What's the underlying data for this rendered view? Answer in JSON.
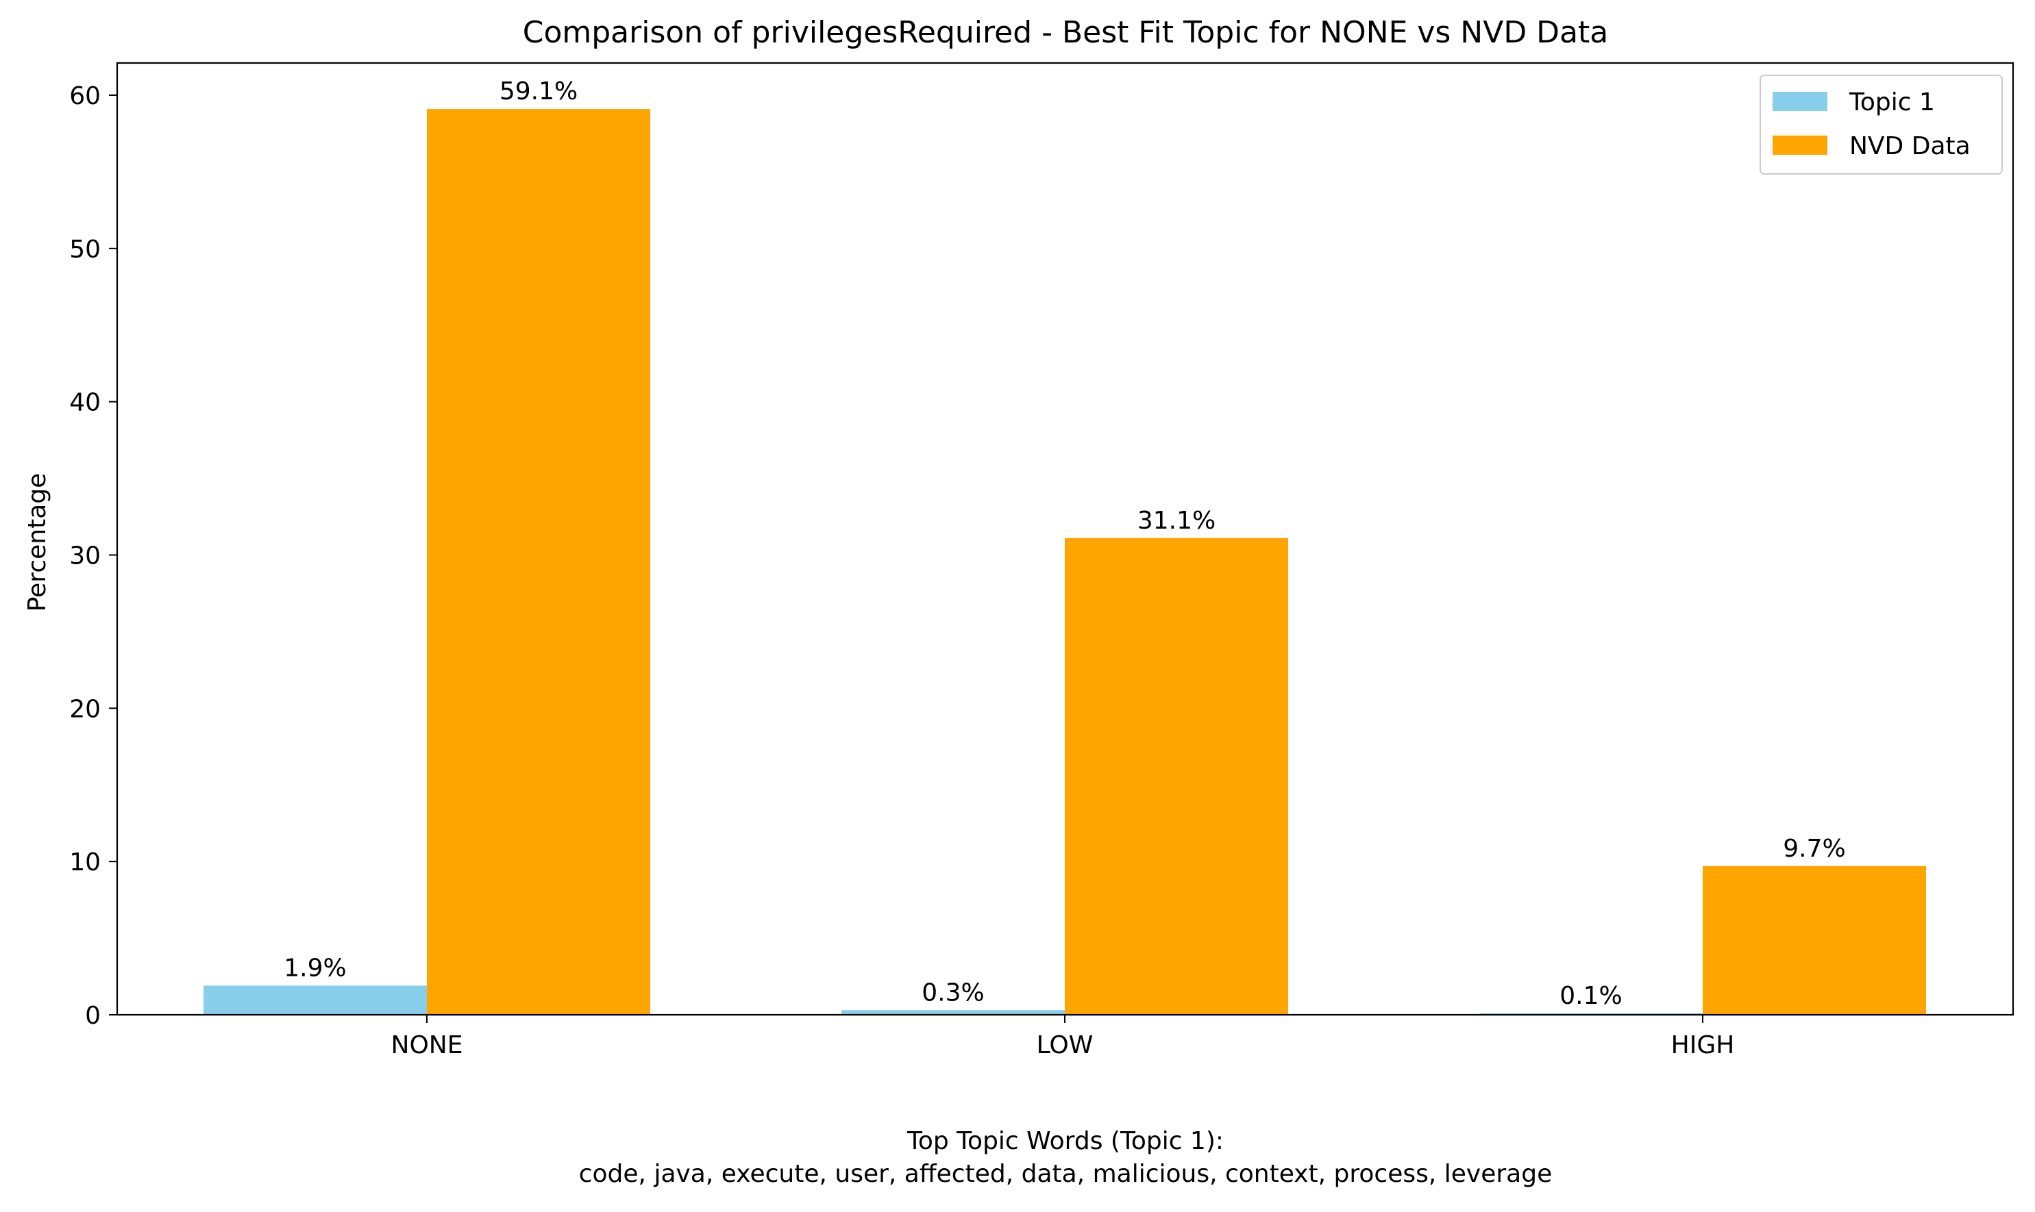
{
  "chart_data": {
    "type": "bar",
    "title": "Comparison of privilegesRequired - Best Fit Topic for NONE vs NVD Data",
    "xlabel_lines": [
      "Top Topic Words (Topic 1):",
      "code,  java,  execute,  user,  affected,  data,  malicious,  context,  process,  leverage"
    ],
    "ylabel": "Percentage",
    "categories": [
      "NONE",
      "LOW",
      "HIGH"
    ],
    "ylim": [
      0,
      62.1
    ],
    "yticks": [
      0,
      10,
      20,
      30,
      40,
      50,
      60
    ],
    "grid": false,
    "legend_position": "top-right",
    "series": [
      {
        "name": "Topic 1",
        "color": "#87CEEB",
        "values": [
          1.9,
          0.3,
          0.1
        ],
        "labels": [
          "1.9%",
          "0.3%",
          "0.1%"
        ]
      },
      {
        "name": "NVD Data",
        "color": "#FFA500",
        "values": [
          59.1,
          31.1,
          9.7
        ],
        "labels": [
          "59.1%",
          "31.1%",
          "9.7%"
        ]
      }
    ]
  }
}
